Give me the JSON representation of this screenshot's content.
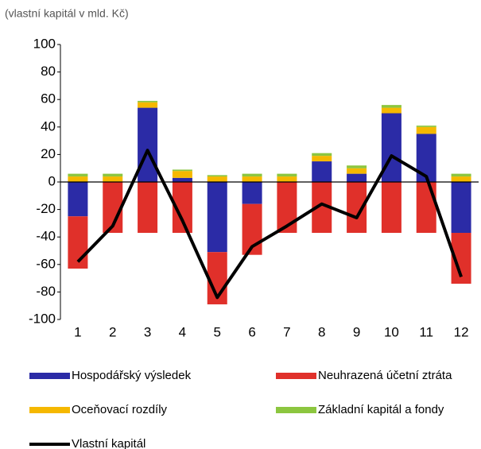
{
  "chart_data": {
    "type": "bar",
    "stacked": true,
    "title": "(vlastní kapitál v mld. Kč)",
    "categories": [
      "1",
      "2",
      "3",
      "4",
      "5",
      "6",
      "7",
      "8",
      "9",
      "10",
      "11",
      "12"
    ],
    "series": [
      {
        "name": "Hospodářský výsledek",
        "type": "bar",
        "color": "#2b2ba6",
        "values": [
          -25,
          0,
          54,
          3,
          -51,
          -16,
          0,
          15,
          6,
          50,
          35,
          -37
        ]
      },
      {
        "name": "Neuhrazená účetní ztráta",
        "type": "bar",
        "color": "#e0302a",
        "values": [
          -38,
          -37,
          -37,
          -37,
          -38,
          -37,
          -37,
          -37,
          -37,
          -37,
          -37,
          -37
        ]
      },
      {
        "name": "Oceňovací rozdíly",
        "type": "bar",
        "color": "#f5b800",
        "values": [
          4,
          4,
          4,
          5,
          4,
          4,
          4,
          4,
          4,
          4,
          5,
          4
        ]
      },
      {
        "name": "Základní kapitál a fondy",
        "type": "bar",
        "color": "#8cc63f",
        "values": [
          2,
          2,
          1,
          1,
          1,
          2,
          2,
          2,
          2,
          2,
          1,
          2
        ]
      },
      {
        "name": "Vlastní kapitál",
        "type": "line",
        "color": "#000000",
        "values": [
          -58,
          -32,
          23,
          -28,
          -84,
          -47,
          -32,
          -16,
          -26,
          19,
          4,
          -69
        ]
      }
    ],
    "ylim": [
      -100,
      100
    ],
    "yticks": [
      100,
      80,
      60,
      40,
      20,
      0,
      -20,
      -40,
      -60,
      -80,
      -100
    ],
    "grid": false,
    "legend": "bottom"
  }
}
